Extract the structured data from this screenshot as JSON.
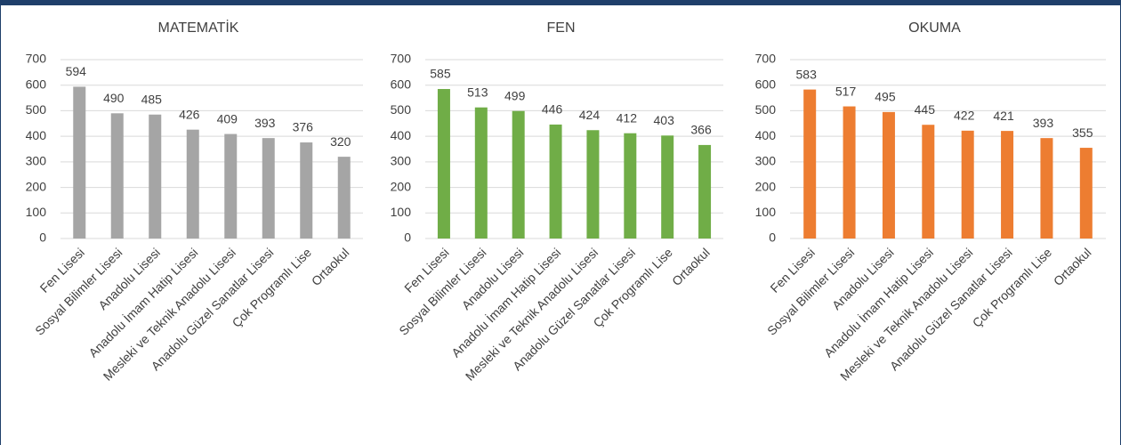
{
  "chart_data": [
    {
      "type": "bar",
      "title": "MATEMATİK",
      "categories": [
        "Fen Lisesi",
        "Sosyal Bilimler Lisesi",
        "Anadolu Lisesi",
        "Anadolu İmam Hatip Lisesi",
        "Mesleki ve Teknik Anadolu Lisesi",
        "Anadolu Güzel Sanatlar Lisesi",
        "Çok Programlı Lise",
        "Ortaokul"
      ],
      "values": [
        594,
        490,
        485,
        426,
        409,
        393,
        376,
        320
      ],
      "color": "#a5a5a5",
      "ylim": [
        0,
        700
      ],
      "yticks": [
        0,
        100,
        200,
        300,
        400,
        500,
        600,
        700
      ],
      "grid": true
    },
    {
      "type": "bar",
      "title": "FEN",
      "categories": [
        "Fen Lisesi",
        "Sosyal Bilimler Lisesi",
        "Anadolu Lisesi",
        "Anadolu İmam Hatip Lisesi",
        "Mesleki ve Teknik Anadolu Lisesi",
        "Anadolu Güzel Sanatlar Lisesi",
        "Çok Programlı Lise",
        "Ortaokul"
      ],
      "values": [
        585,
        513,
        499,
        446,
        424,
        412,
        403,
        366
      ],
      "color": "#70ad47",
      "ylim": [
        0,
        700
      ],
      "yticks": [
        0,
        100,
        200,
        300,
        400,
        500,
        600,
        700
      ],
      "grid": true
    },
    {
      "type": "bar",
      "title": "OKUMA",
      "categories": [
        "Fen Lisesi",
        "Sosyal Bilimler Lisesi",
        "Anadolu Lisesi",
        "Anadolu İmam Hatip Lisesi",
        "Mesleki ve Teknik Anadolu Lisesi",
        "Anadolu Güzel Sanatlar Lisesi",
        "Çok Programlı Lise",
        "Ortaokul"
      ],
      "values": [
        583,
        517,
        495,
        445,
        422,
        421,
        393,
        355
      ],
      "color": "#ed7d31",
      "ylim": [
        0,
        700
      ],
      "yticks": [
        0,
        100,
        200,
        300,
        400,
        500,
        600,
        700
      ],
      "grid": true
    }
  ]
}
